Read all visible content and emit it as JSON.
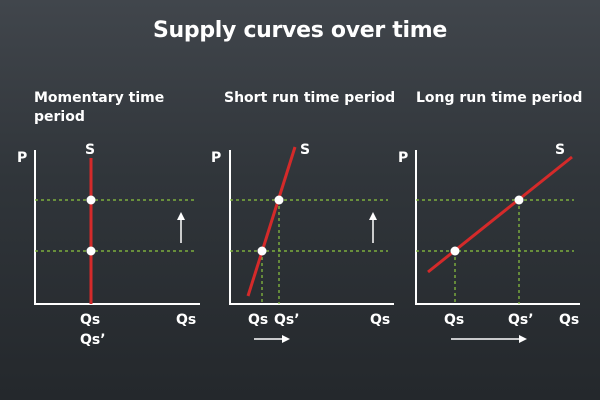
{
  "title": "Supply curves over time",
  "panels": [
    {
      "title_line1": "Momentary time",
      "title_line2": "period",
      "p_label": "P",
      "s_label": "S",
      "qs_label": "Qs",
      "qs2_label": "Qs’",
      "axis_label": "Qs",
      "shift_indicator": "up-arrow"
    },
    {
      "title_line1": "Short run time period",
      "title_line2": "",
      "p_label": "P",
      "s_label": "S",
      "qs_label": "Qs",
      "qs2_label": "Qs’",
      "axis_label": "Qs",
      "shift_indicator": "up-arrow"
    },
    {
      "title_line1": "Long run time period",
      "title_line2": "",
      "p_label": "P",
      "s_label": "S",
      "qs_label": "Qs",
      "qs2_label": "Qs’",
      "axis_label": "Qs",
      "shift_indicator": "right-arrow"
    }
  ],
  "colors": {
    "supply_curve": "#d42a2a",
    "guide_line": "#8cc63f",
    "axis": "#ffffff",
    "background": "#2c3034"
  }
}
